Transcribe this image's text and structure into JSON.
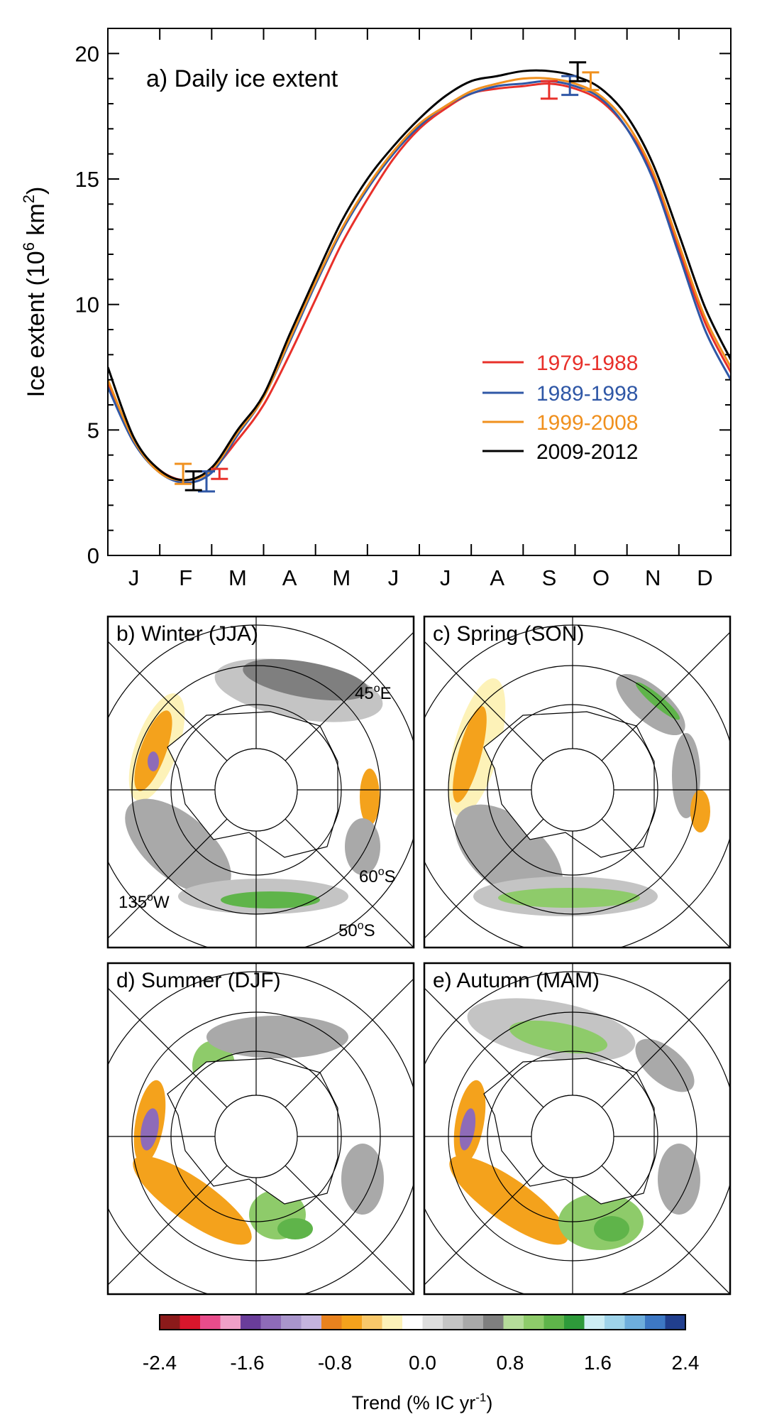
{
  "chart_data": [
    {
      "type": "line",
      "title": "a) Daily ice extent",
      "ylabel_base": "Ice extent (10",
      "ylabel_exp1": "6",
      "ylabel_mid": " km",
      "ylabel_exp2": "2",
      "ylabel_end": ")",
      "ylim": [
        0,
        21
      ],
      "yticks": [
        0,
        5,
        10,
        15,
        20
      ],
      "xlim": [
        0,
        12
      ],
      "month_labels": [
        "J",
        "F",
        "M",
        "A",
        "M",
        "J",
        "J",
        "A",
        "S",
        "O",
        "N",
        "D"
      ],
      "legend_position": "center-right",
      "series": [
        {
          "name": "1979-1988",
          "color": "#e8302a",
          "x": [
            0,
            0.5,
            1.0,
            1.5,
            2.0,
            2.5,
            3.0,
            3.5,
            4.0,
            4.5,
            5.0,
            5.5,
            6.0,
            6.5,
            7.0,
            7.5,
            8.0,
            8.5,
            9.0,
            9.5,
            10.0,
            10.5,
            11.0,
            11.5,
            12.0
          ],
          "y": [
            6.9,
            4.6,
            3.4,
            3.0,
            3.4,
            4.6,
            6.0,
            8.0,
            10.2,
            12.4,
            14.2,
            15.8,
            17.0,
            17.8,
            18.4,
            18.6,
            18.7,
            18.8,
            18.6,
            18.1,
            17.0,
            15.2,
            12.2,
            9.3,
            7.3
          ]
        },
        {
          "name": "1989-1998",
          "color": "#2f57a6",
          "x": [
            0,
            0.5,
            1.0,
            1.5,
            2.0,
            2.5,
            3.0,
            3.5,
            4.0,
            4.5,
            5.0,
            5.5,
            6.0,
            6.5,
            7.0,
            7.5,
            8.0,
            8.5,
            9.0,
            9.5,
            10.0,
            10.5,
            11.0,
            11.5,
            12.0
          ],
          "y": [
            6.7,
            4.5,
            3.3,
            2.9,
            3.3,
            4.8,
            6.3,
            8.5,
            10.8,
            12.9,
            14.6,
            16.0,
            17.1,
            17.9,
            18.4,
            18.7,
            18.8,
            18.9,
            18.7,
            18.2,
            17.0,
            15.0,
            12.0,
            9.0,
            7.0
          ]
        },
        {
          "name": "1999-2008",
          "color": "#f0901e",
          "x": [
            0,
            0.5,
            1.0,
            1.5,
            2.0,
            2.5,
            3.0,
            3.5,
            4.0,
            4.5,
            5.0,
            5.5,
            6.0,
            6.5,
            7.0,
            7.5,
            8.0,
            8.5,
            9.0,
            9.5,
            10.0,
            10.5,
            11.0,
            11.5,
            12.0
          ],
          "y": [
            7.0,
            4.6,
            3.3,
            3.0,
            3.4,
            4.9,
            6.3,
            8.6,
            10.9,
            13.0,
            14.7,
            16.1,
            17.2,
            17.9,
            18.5,
            18.8,
            19.0,
            19.0,
            18.8,
            18.3,
            17.2,
            15.3,
            12.4,
            9.5,
            7.5
          ]
        },
        {
          "name": "2009-2012",
          "color": "#000000",
          "x": [
            0,
            0.5,
            1.0,
            1.5,
            2.0,
            2.5,
            3.0,
            3.5,
            4.0,
            4.5,
            5.0,
            5.5,
            6.0,
            6.5,
            7.0,
            7.5,
            8.0,
            8.5,
            9.0,
            9.5,
            10.0,
            10.5,
            11.0,
            11.5,
            12.0
          ],
          "y": [
            7.5,
            4.7,
            3.4,
            3.0,
            3.5,
            5.0,
            6.4,
            8.8,
            11.1,
            13.3,
            15.0,
            16.3,
            17.4,
            18.3,
            18.9,
            19.1,
            19.3,
            19.3,
            19.1,
            18.6,
            17.5,
            15.6,
            12.8,
            9.9,
            7.8
          ]
        }
      ],
      "error_bars": [
        {
          "series": "1979-1988",
          "x": 2.15,
          "low": 3.05,
          "high": 3.45
        },
        {
          "series": "1989-1998",
          "x": 1.9,
          "low": 2.55,
          "high": 3.35
        },
        {
          "series": "1999-2008",
          "x": 1.45,
          "low": 2.85,
          "high": 3.65
        },
        {
          "series": "2009-2012",
          "x": 1.65,
          "low": 2.6,
          "high": 3.35
        },
        {
          "series": "1979-1988",
          "x": 8.5,
          "low": 18.2,
          "high": 18.9
        },
        {
          "series": "1989-1998",
          "x": 8.9,
          "low": 18.35,
          "high": 19.1
        },
        {
          "series": "1999-2008",
          "x": 9.3,
          "low": 18.55,
          "high": 19.25
        },
        {
          "series": "2009-2012",
          "x": 9.05,
          "low": 18.9,
          "high": 19.65
        }
      ]
    },
    {
      "type": "heatmap",
      "maps": [
        {
          "label": "b) Winter (JJA)"
        },
        {
          "label": "c) Spring (SON)"
        },
        {
          "label": "d) Summer (DJF)"
        },
        {
          "label": "e) Autumn (MAM)"
        }
      ],
      "map_annotations": {
        "lon_east": "45",
        "lon_east_sup": "o",
        "lon_east_suffix": "E",
        "lat_inner": "60",
        "lat_inner_sup": "o",
        "lat_inner_suffix": "S",
        "lon_west": "135",
        "lon_west_sup": "o",
        "lon_west_suffix": "W",
        "lat_outer": "50",
        "lat_outer_sup": "o",
        "lat_outer_suffix": "S"
      },
      "colorbar": {
        "title": "Trend (% IC yr",
        "title_sup": "-1",
        "title_end": ")",
        "ticks": [
          "-2.4",
          "-1.6",
          "-0.8",
          "0.0",
          "0.8",
          "1.6",
          "2.4"
        ],
        "colors": [
          "#8b1a1a",
          "#d8162c",
          "#e84c8b",
          "#f0a0c8",
          "#6a3d9a",
          "#8e6bb8",
          "#a995cc",
          "#c4b3de",
          "#e8821e",
          "#f4a21c",
          "#f8c86a",
          "#fdf2b8",
          "#ffffff",
          "#dedede",
          "#c4c4c4",
          "#a9a9a9",
          "#7f7f7f",
          "#b5dc9a",
          "#8ecb6a",
          "#5fb44a",
          "#2e9a3a",
          "#cdeef4",
          "#9fd4ea",
          "#6eaedc",
          "#3d78c4",
          "#213f8e"
        ]
      }
    }
  ]
}
